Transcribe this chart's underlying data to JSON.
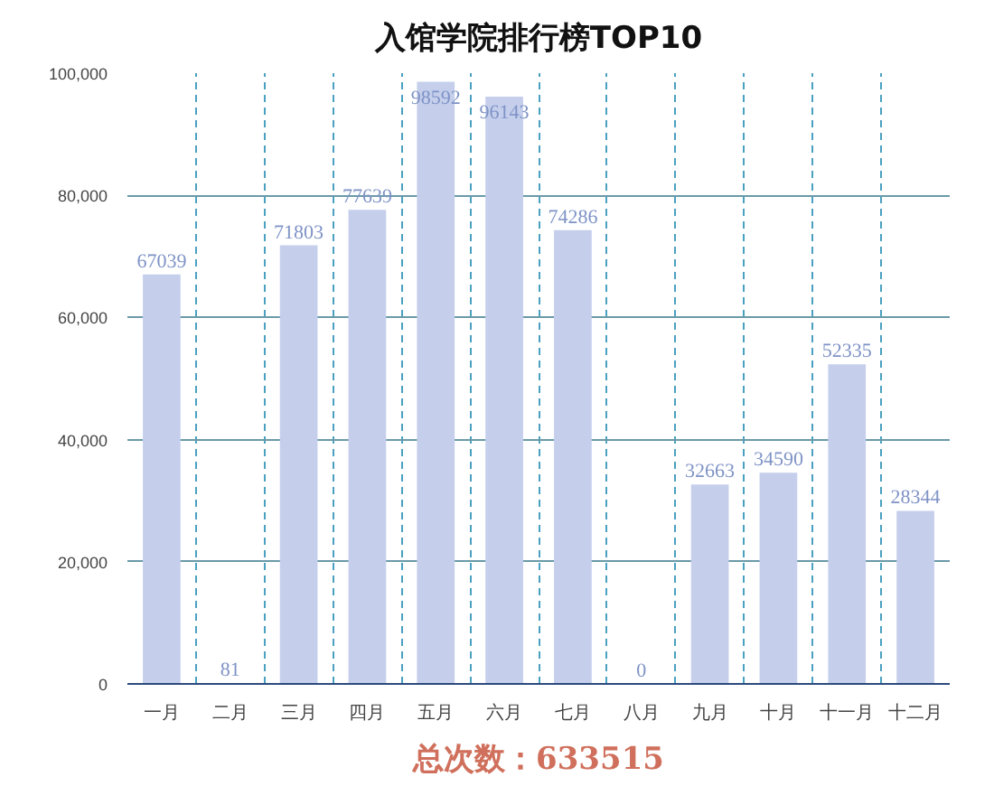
{
  "chart_data": {
    "type": "bar",
    "title": "入馆学院排行榜TOP10",
    "categories": [
      "一月",
      "二月",
      "三月",
      "四月",
      "五月",
      "六月",
      "七月",
      "八月",
      "九月",
      "十月",
      "十一月",
      "十二月"
    ],
    "values": [
      67039,
      81,
      71803,
      77639,
      98592,
      96143,
      74286,
      0,
      32663,
      34590,
      52335,
      28344
    ],
    "color": "#c5cfec",
    "data_labels": true,
    "ylim": [
      0,
      100000
    ],
    "yticks": [
      0,
      {
        "value": 20000,
        "label": "20,000"
      },
      {
        "value": 40000,
        "label": "40,000"
      },
      {
        "value": 60000,
        "label": "60,000"
      },
      {
        "value": 80000,
        "label": "80,000"
      },
      {
        "value": 100000,
        "label": "100,000"
      }
    ],
    "grid": true,
    "annotations": [
      "总次数：633515"
    ]
  }
}
